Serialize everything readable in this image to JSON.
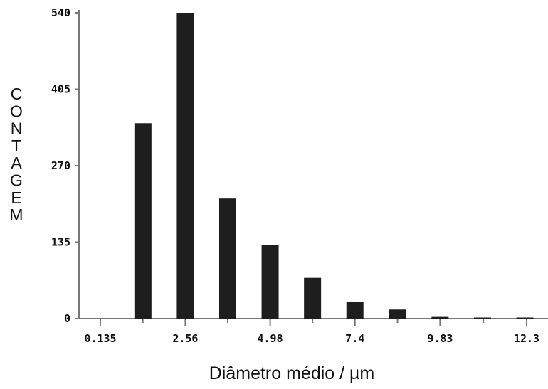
{
  "chart_data": {
    "type": "bar",
    "xlabel": "Diâmetro médio / µm",
    "ylabel": "CONTAGEM",
    "ylim": [
      0,
      540
    ],
    "yticks": [
      "0",
      "135",
      "270",
      "405",
      "540"
    ],
    "xticks": [
      "0.135",
      "2.56",
      "4.98",
      "7.4",
      "9.83",
      "12.3"
    ],
    "xlim": [
      0.135,
      12.3
    ],
    "grid": false,
    "bars": [
      {
        "x": 1.35,
        "value": 345
      },
      {
        "x": 2.56,
        "value": 540
      },
      {
        "x": 3.77,
        "value": 212
      },
      {
        "x": 4.98,
        "value": 130
      },
      {
        "x": 6.19,
        "value": 72
      },
      {
        "x": 7.4,
        "value": 30
      },
      {
        "x": 8.61,
        "value": 16
      },
      {
        "x": 9.83,
        "value": 3
      },
      {
        "x": 11.04,
        "value": 1.5
      },
      {
        "x": 12.25,
        "value": 1
      }
    ],
    "bar_color": "#1e1e1e"
  }
}
